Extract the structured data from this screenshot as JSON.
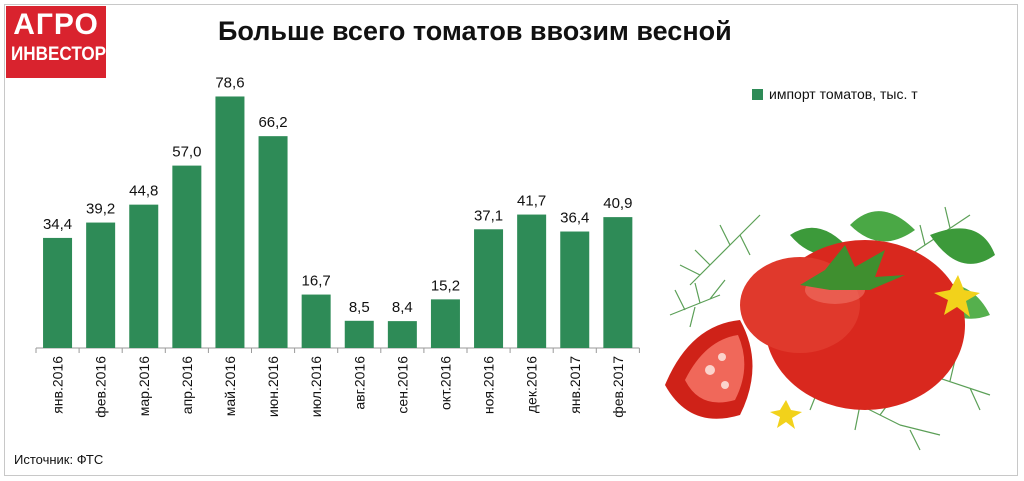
{
  "logo": {
    "line1": "АГРО",
    "line2": "ИНВЕСТОР"
  },
  "source": "Источник: ФТС",
  "colors": {
    "bar": "#2e8b57",
    "logo_bg": "#d9232e"
  },
  "chart_data": {
    "type": "bar",
    "title": "Больше всего томатов ввозим весной",
    "xlabel": "",
    "ylabel": "",
    "ylim": [
      0,
      80
    ],
    "grid": false,
    "legend_position": "top-right",
    "categories": [
      "янв.2016",
      "фев.2016",
      "мар.2016",
      "апр.2016",
      "май.2016",
      "июн.2016",
      "июл.2016",
      "авг.2016",
      "сен.2016",
      "окт.2016",
      "ноя.2016",
      "дек.2016",
      "янв.2017",
      "фев.2017"
    ],
    "series": [
      {
        "name": "импорт томатов, тыс. т",
        "values": [
          34.4,
          39.2,
          44.8,
          57.0,
          78.6,
          66.2,
          16.7,
          8.5,
          8.4,
          15.2,
          37.1,
          41.7,
          36.4,
          40.9
        ],
        "labels": [
          "34,4",
          "39,2",
          "44,8",
          "57,0",
          "78,6",
          "66,2",
          "16,7",
          "8,5",
          "8,4",
          "15,2",
          "37,1",
          "41,7",
          "36,4",
          "40,9"
        ]
      }
    ]
  }
}
